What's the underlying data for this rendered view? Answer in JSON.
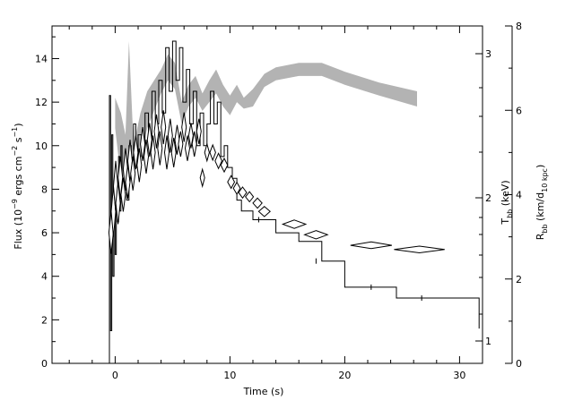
{
  "chart_data": {
    "type": "line",
    "axes": {
      "left": {
        "label_main": "Flux (10",
        "label_exp1": "−9",
        "label_mid": " ergs cm",
        "label_exp2": "−2",
        "label_mid2": " s",
        "label_exp3": "−1",
        "label_end": ")",
        "ylim": [
          0,
          15.5
        ],
        "ticks": [
          0,
          2,
          4,
          6,
          8,
          10,
          12,
          14
        ]
      },
      "x": {
        "label": "Time (s)",
        "xlim": [
          -5.5,
          32
        ],
        "ticks": [
          0,
          10,
          20,
          30
        ]
      },
      "right_T": {
        "label_main": "T",
        "label_sub": "bb",
        "label_end": " (keV)",
        "ticks": [
          1,
          2,
          3
        ]
      },
      "right_R": {
        "label_main": "R",
        "label_sub": "bb",
        "label_mid": " (km/d",
        "label_sub2": "10 kpc",
        "label_end": ")",
        "ylim": [
          0,
          8
        ],
        "ticks": [
          0,
          2,
          4,
          6,
          8
        ]
      }
    },
    "series": [
      {
        "kind": "light-curve",
        "points": [
          [
            -0.6,
            0.0
          ],
          [
            -0.5,
            12.3
          ],
          [
            -0.4,
            1.5
          ],
          [
            -0.3,
            10.5
          ],
          [
            -0.2,
            4.0
          ],
          [
            -0.1,
            7.5
          ],
          [
            0.0,
            5.0
          ],
          [
            0.1,
            8.0
          ],
          [
            0.2,
            6.5
          ],
          [
            0.3,
            9.5
          ],
          [
            0.4,
            7.0
          ],
          [
            0.5,
            10.0
          ],
          [
            0.6,
            8.0
          ],
          [
            0.8,
            9.0
          ],
          [
            1.0,
            7.5
          ],
          [
            1.2,
            10.0
          ],
          [
            1.4,
            8.5
          ],
          [
            1.6,
            11.0
          ],
          [
            1.8,
            9.0
          ],
          [
            2.0,
            10.5
          ],
          [
            2.3,
            9.5
          ],
          [
            2.6,
            11.5
          ],
          [
            2.9,
            10.0
          ],
          [
            3.2,
            12.5
          ],
          [
            3.5,
            11.0
          ],
          [
            3.8,
            13.0
          ],
          [
            4.1,
            11.5
          ],
          [
            4.4,
            14.5
          ],
          [
            4.7,
            12.5
          ],
          [
            5.0,
            14.8
          ],
          [
            5.3,
            13.0
          ],
          [
            5.6,
            14.5
          ],
          [
            5.9,
            12.0
          ],
          [
            6.2,
            13.5
          ],
          [
            6.5,
            11.0
          ],
          [
            6.8,
            12.5
          ],
          [
            7.1,
            10.0
          ],
          [
            7.4,
            11.5
          ],
          [
            7.7,
            10.0
          ],
          [
            8.0,
            11.0
          ],
          [
            8.3,
            12.5
          ],
          [
            8.6,
            11.0
          ],
          [
            8.9,
            12.0
          ],
          [
            9.2,
            9.5
          ],
          [
            9.5,
            10.0
          ],
          [
            9.8,
            9.0
          ],
          [
            10.2,
            8.5
          ],
          [
            10.6,
            7.5
          ],
          [
            11.0,
            7.0
          ],
          [
            12.0,
            6.6
          ],
          [
            14.0,
            6.0
          ],
          [
            16.0,
            5.6
          ],
          [
            18.0,
            4.7
          ],
          [
            20.0,
            3.5
          ],
          [
            24.5,
            3.0
          ],
          [
            28.0,
            3.0
          ],
          [
            30.0,
            3.0
          ],
          [
            31.5,
            3.0
          ],
          [
            31.7,
            1.6
          ]
        ]
      },
      {
        "kind": "temperature-band",
        "upper": [
          [
            0.0,
            12.2
          ],
          [
            0.5,
            11.5
          ],
          [
            0.9,
            10.5
          ],
          [
            1.2,
            14.8
          ],
          [
            1.6,
            10.0
          ],
          [
            2.2,
            11.5
          ],
          [
            2.8,
            12.5
          ],
          [
            3.4,
            13.0
          ],
          [
            4.0,
            13.5
          ],
          [
            4.6,
            14.2
          ],
          [
            5.2,
            13.8
          ],
          [
            5.8,
            12.0
          ],
          [
            6.4,
            12.8
          ],
          [
            7.0,
            13.2
          ],
          [
            7.6,
            12.4
          ],
          [
            8.2,
            13.0
          ],
          [
            8.8,
            13.5
          ],
          [
            9.4,
            12.8
          ],
          [
            10.0,
            12.3
          ],
          [
            10.6,
            12.8
          ],
          [
            11.2,
            12.2
          ],
          [
            12.0,
            12.6
          ],
          [
            13.0,
            13.3
          ],
          [
            14.0,
            13.6
          ],
          [
            16.0,
            13.8
          ],
          [
            18.0,
            13.8
          ],
          [
            20.0,
            13.4
          ],
          [
            23.0,
            12.9
          ],
          [
            26.3,
            12.5
          ]
        ],
        "lower": [
          [
            26.3,
            11.8
          ],
          [
            23.0,
            12.3
          ],
          [
            20.0,
            12.8
          ],
          [
            18.0,
            13.2
          ],
          [
            16.0,
            13.2
          ],
          [
            14.0,
            13.0
          ],
          [
            13.0,
            12.7
          ],
          [
            12.0,
            11.8
          ],
          [
            11.2,
            11.7
          ],
          [
            10.6,
            12.0
          ],
          [
            10.0,
            11.4
          ],
          [
            9.4,
            11.8
          ],
          [
            8.8,
            12.4
          ],
          [
            8.2,
            12.0
          ],
          [
            7.6,
            11.6
          ],
          [
            7.0,
            12.2
          ],
          [
            6.4,
            11.8
          ],
          [
            5.8,
            11.0
          ],
          [
            5.2,
            12.6
          ],
          [
            4.6,
            13.0
          ],
          [
            4.0,
            12.4
          ],
          [
            3.4,
            11.6
          ],
          [
            2.8,
            10.8
          ],
          [
            2.2,
            9.5
          ],
          [
            1.6,
            8.8
          ],
          [
            1.2,
            9.2
          ],
          [
            0.9,
            8.0
          ],
          [
            0.5,
            8.5
          ],
          [
            0.0,
            10.8
          ]
        ]
      },
      {
        "kind": "radius-points",
        "points": [
          [
            -0.35,
            3.1,
            0.15,
            0.5
          ],
          [
            -0.15,
            3.6,
            0.15,
            0.6
          ],
          [
            0.05,
            4.2,
            0.15,
            0.6
          ],
          [
            0.25,
            3.8,
            0.15,
            0.5
          ],
          [
            0.45,
            4.4,
            0.15,
            0.5
          ],
          [
            0.7,
            4.0,
            0.15,
            0.4
          ],
          [
            0.9,
            4.6,
            0.15,
            0.5
          ],
          [
            1.1,
            4.3,
            0.15,
            0.4
          ],
          [
            1.3,
            4.8,
            0.15,
            0.5
          ],
          [
            1.55,
            4.5,
            0.15,
            0.4
          ],
          [
            1.8,
            5.0,
            0.15,
            0.4
          ],
          [
            2.1,
            4.7,
            0.15,
            0.4
          ],
          [
            2.4,
            5.2,
            0.15,
            0.4
          ],
          [
            2.7,
            4.9,
            0.15,
            0.4
          ],
          [
            3.0,
            5.3,
            0.15,
            0.4
          ],
          [
            3.3,
            5.0,
            0.15,
            0.4
          ],
          [
            3.6,
            5.5,
            0.15,
            0.4
          ],
          [
            3.9,
            5.1,
            0.15,
            0.4
          ],
          [
            4.2,
            5.6,
            0.15,
            0.4
          ],
          [
            4.5,
            5.0,
            0.15,
            0.4
          ],
          [
            4.8,
            5.4,
            0.15,
            0.4
          ],
          [
            5.1,
            5.0,
            0.15,
            0.35
          ],
          [
            5.4,
            5.3,
            0.15,
            0.35
          ],
          [
            5.7,
            5.2,
            0.15,
            0.3
          ],
          [
            6.0,
            5.6,
            0.15,
            0.35
          ],
          [
            6.3,
            5.1,
            0.15,
            0.3
          ],
          [
            6.6,
            5.4,
            0.15,
            0.3
          ],
          [
            6.9,
            5.2,
            0.15,
            0.3
          ],
          [
            7.3,
            5.5,
            0.15,
            0.3
          ],
          [
            7.6,
            4.4,
            0.15,
            0.2
          ],
          [
            8.0,
            5.0,
            0.2,
            0.2
          ],
          [
            8.5,
            5.0,
            0.25,
            0.18
          ],
          [
            9.0,
            4.8,
            0.3,
            0.18
          ],
          [
            9.5,
            4.7,
            0.3,
            0.16
          ],
          [
            10.1,
            4.3,
            0.3,
            0.15
          ],
          [
            10.6,
            4.15,
            0.3,
            0.14
          ],
          [
            11.1,
            4.05,
            0.35,
            0.13
          ],
          [
            11.7,
            3.95,
            0.35,
            0.12
          ],
          [
            12.4,
            3.8,
            0.4,
            0.12
          ],
          [
            13.0,
            3.6,
            0.5,
            0.12
          ],
          [
            15.6,
            3.3,
            1.0,
            0.1
          ],
          [
            17.5,
            3.05,
            1.0,
            0.1
          ],
          [
            22.3,
            2.8,
            1.8,
            0.08
          ],
          [
            26.5,
            2.7,
            2.2,
            0.08
          ]
        ]
      }
    ]
  }
}
